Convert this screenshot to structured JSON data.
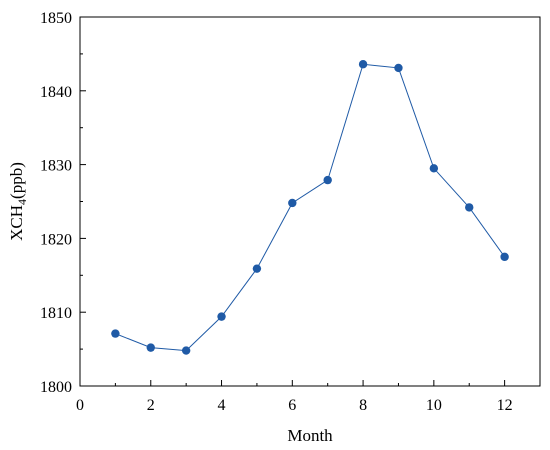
{
  "chart_data": {
    "type": "line",
    "title": "",
    "xlabel": "Month",
    "ylabel": {
      "main": "XCH",
      "subscript": "4",
      "suffix": "(ppb)"
    },
    "xlim": [
      0,
      13
    ],
    "ylim": [
      1800,
      1850
    ],
    "xticks": [
      0,
      2,
      4,
      6,
      8,
      10,
      12
    ],
    "yticks": [
      1800,
      1810,
      1820,
      1830,
      1840,
      1850
    ],
    "grid": false,
    "legend": "none",
    "series": [
      {
        "color": "#1f5aa6",
        "x": [
          1,
          2,
          3,
          4,
          5,
          6,
          7,
          8,
          9,
          10,
          11,
          12
        ],
        "y": [
          1807.1,
          1805.2,
          1804.8,
          1809.4,
          1815.9,
          1824.8,
          1827.9,
          1843.6,
          1843.1,
          1829.5,
          1824.2,
          1817.5
        ]
      }
    ]
  }
}
